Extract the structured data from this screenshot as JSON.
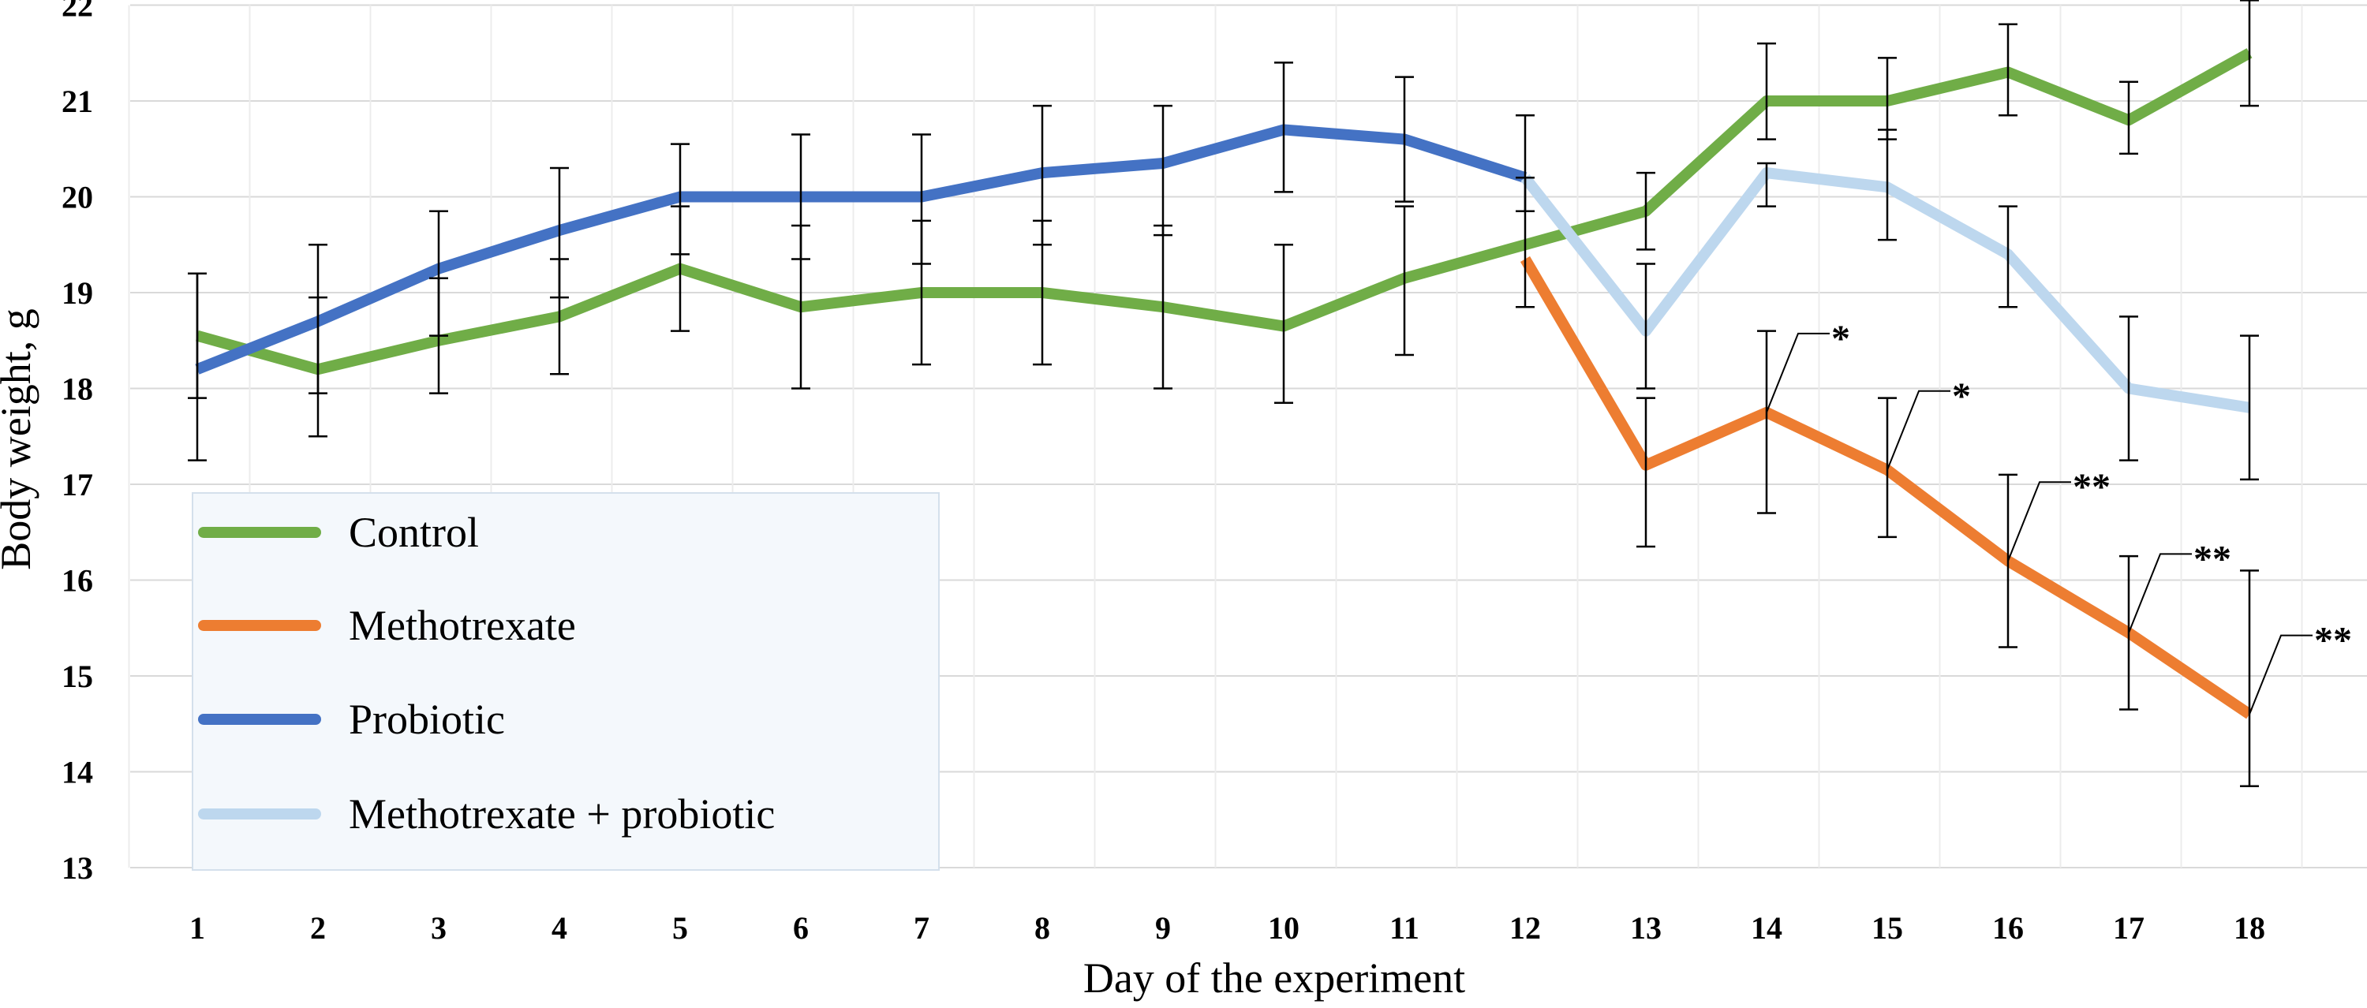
{
  "chart_data": {
    "type": "line",
    "title": "",
    "xlabel": "Day of the experiment",
    "ylabel": "Body weight, g",
    "x": [
      1,
      2,
      3,
      4,
      5,
      6,
      7,
      8,
      9,
      10,
      11,
      12,
      13,
      14,
      15,
      16,
      17,
      18
    ],
    "ylim": [
      13,
      22
    ],
    "yticks": [
      "13",
      "14",
      "15",
      "16",
      "17",
      "18",
      "19",
      "20",
      "21",
      "22"
    ],
    "xticks": [
      "1",
      "2",
      "3",
      "4",
      "5",
      "6",
      "7",
      "8",
      "9",
      "10",
      "11",
      "12",
      "13",
      "14",
      "15",
      "16",
      "17",
      "18"
    ],
    "grid": true,
    "legend_position": "bottom-left",
    "series": [
      {
        "name": "Control",
        "color": "#70ad47",
        "x": [
          1,
          2,
          3,
          4,
          5,
          6,
          7,
          8,
          9,
          10,
          11,
          12,
          13,
          14,
          15,
          16,
          17,
          18
        ],
        "values": [
          18.55,
          18.2,
          18.5,
          18.75,
          19.25,
          18.85,
          19.0,
          19.0,
          18.85,
          18.65,
          19.15,
          19.5,
          19.85,
          21.0,
          21.0,
          21.3,
          20.8,
          21.5
        ],
        "err_low": [
          17.9,
          17.5,
          17.95,
          18.15,
          18.6,
          18.0,
          18.25,
          18.25,
          18.0,
          17.85,
          18.35,
          18.85,
          19.45,
          20.6,
          20.6,
          20.85,
          20.45,
          20.95
        ],
        "err_high": [
          19.2,
          18.95,
          19.15,
          19.35,
          19.9,
          19.7,
          19.75,
          19.75,
          19.7,
          19.5,
          19.9,
          20.2,
          20.25,
          21.6,
          21.45,
          21.8,
          21.2,
          22.05
        ]
      },
      {
        "name": "Methotrexate",
        "color": "#ed7d31",
        "x": [
          12,
          13,
          14,
          15,
          16,
          17,
          18
        ],
        "values": [
          19.35,
          17.2,
          17.75,
          17.15,
          16.2,
          15.45,
          14.6
        ],
        "err_low": [
          null,
          16.35,
          16.7,
          16.45,
          15.3,
          14.65,
          13.85
        ],
        "err_high": [
          null,
          17.9,
          18.6,
          17.9,
          17.1,
          16.25,
          16.1
        ]
      },
      {
        "name": "Probiotic",
        "color": "#4472c4",
        "x": [
          1,
          2,
          3,
          4,
          5,
          6,
          7,
          8,
          9,
          10,
          11,
          12
        ],
        "values": [
          18.2,
          18.7,
          19.25,
          19.65,
          20.0,
          20.0,
          20.0,
          20.25,
          20.35,
          20.7,
          20.6,
          20.2
        ],
        "err_low": [
          17.25,
          17.95,
          18.55,
          18.95,
          19.4,
          19.35,
          19.3,
          19.5,
          19.6,
          20.05,
          19.95,
          19.85
        ],
        "err_high": [
          19.2,
          19.5,
          19.85,
          20.3,
          20.55,
          20.65,
          20.65,
          20.95,
          20.95,
          21.4,
          21.25,
          20.85
        ]
      },
      {
        "name": "Methotrexate + probiotic",
        "color": "#bdd7ee",
        "x": [
          12,
          13,
          14,
          15,
          16,
          17,
          18
        ],
        "values": [
          20.2,
          18.6,
          20.25,
          20.1,
          19.4,
          18.0,
          17.8
        ],
        "err_low": [
          null,
          18.0,
          19.9,
          19.55,
          18.85,
          17.25,
          17.05
        ],
        "err_high": [
          null,
          19.3,
          20.35,
          20.7,
          19.9,
          18.75,
          18.55
        ]
      }
    ],
    "annotations": [
      {
        "x": 14,
        "y": 17.75,
        "text": "*"
      },
      {
        "x": 15,
        "y": 17.15,
        "text": "*"
      },
      {
        "x": 16,
        "y": 16.2,
        "text": "**"
      },
      {
        "x": 17,
        "y": 15.45,
        "text": "**"
      },
      {
        "x": 18,
        "y": 14.6,
        "text": "**"
      }
    ]
  }
}
